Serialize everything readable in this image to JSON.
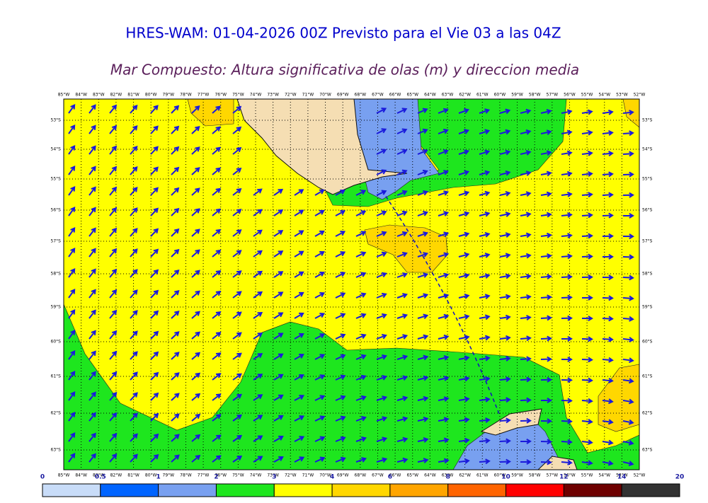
{
  "header": {
    "title": "HRES-WAM: 01-04-2026 00Z Previsto para el Vie 03 a las 04Z",
    "subtitle": "Mar Compuesto: Altura significativa de olas (m) y direccion media"
  },
  "map": {
    "lon_labels": [
      "85°W",
      "84°W",
      "83°W",
      "82°W",
      "81°W",
      "80°W",
      "79°W",
      "78°W",
      "77°W",
      "76°W",
      "75°W",
      "74°W",
      "73°W",
      "72°W",
      "71°W",
      "70°W",
      "69°W",
      "68°W",
      "67°W",
      "66°W",
      "65°W",
      "64°W",
      "63°W",
      "62°W",
      "61°W",
      "60°W",
      "59°W",
      "58°W",
      "57°W",
      "56°W",
      "55°W",
      "54°W",
      "53°W",
      "52°W"
    ],
    "lat_labels": [
      "53°S",
      "54°S",
      "55°S",
      "56°S",
      "57°S",
      "58°S",
      "59°S",
      "60°S",
      "61°S",
      "62°S",
      "63°S"
    ]
  },
  "colorbar": {
    "ticks": [
      0,
      0.5,
      1,
      2,
      3,
      4,
      6,
      8,
      10,
      12,
      14,
      20
    ],
    "colors": [
      "#c8dcf8",
      "#0064ff",
      "#78a0f0",
      "#1ee61e",
      "#ffff00",
      "#ffd700",
      "#ffa500",
      "#ff6400",
      "#ff0000",
      "#6e0000",
      "#323232"
    ]
  }
}
